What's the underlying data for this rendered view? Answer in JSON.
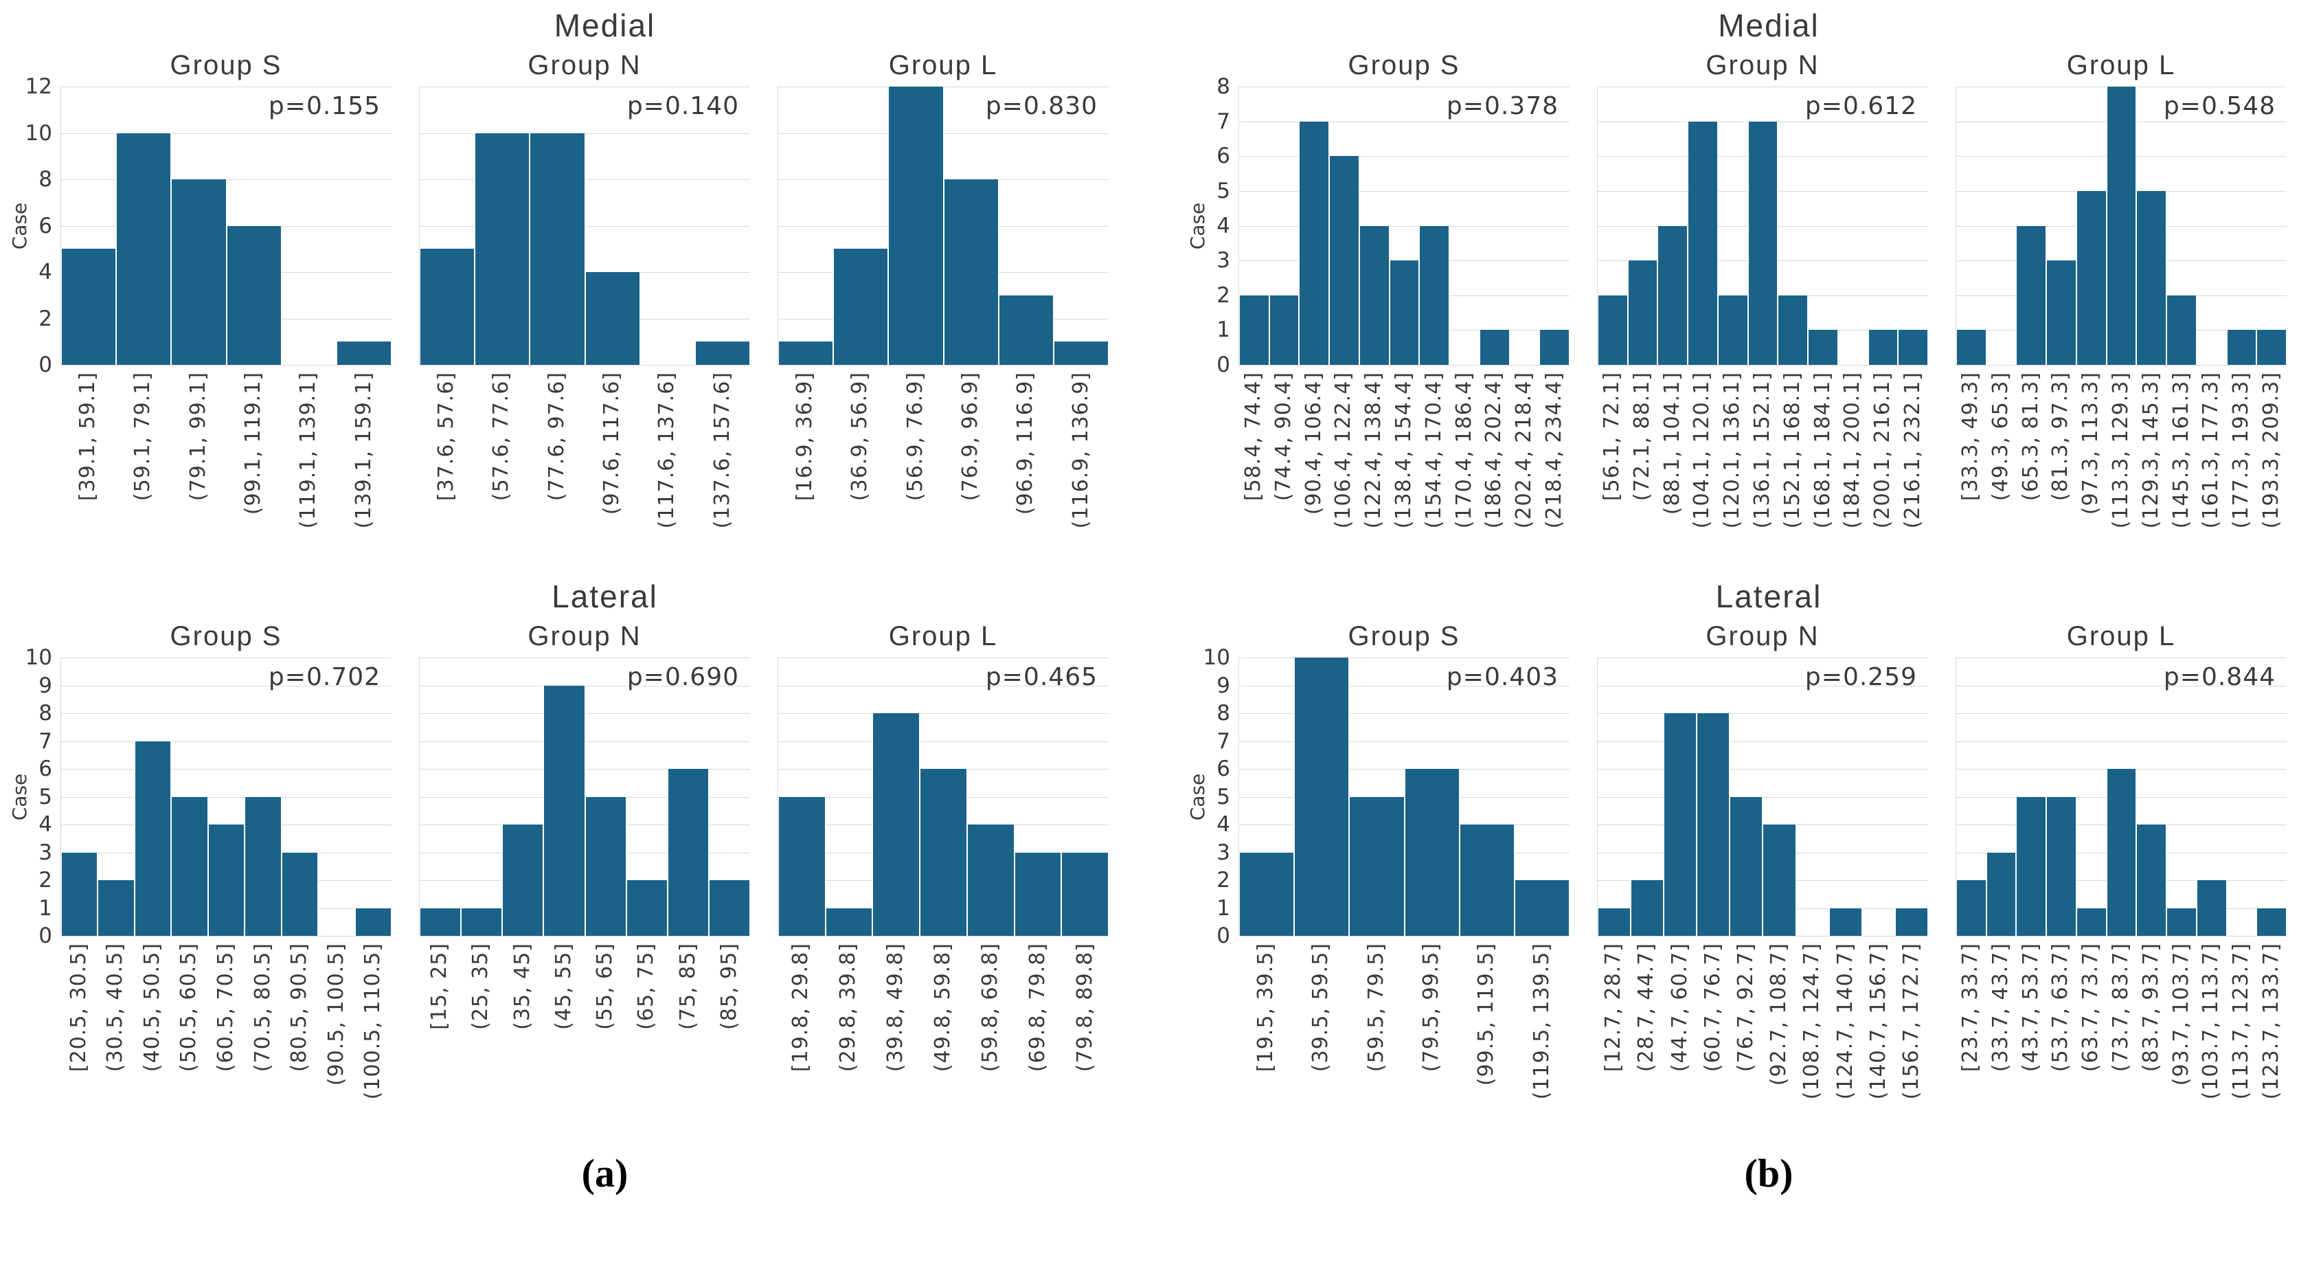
{
  "style": {
    "bar_color": "#1b6289",
    "bar_edge_color": "#ffffff",
    "grid_color": "#d8d8d8",
    "text_color": "#3a3a3a",
    "background": "#ffffff",
    "panel_label_color": "#000000"
  },
  "chart_layout": {
    "panels": [
      {
        "label": "(a)",
        "sections": [
          {
            "title": "Medial",
            "ylabel": "Case",
            "ymax": 12,
            "ystep": 2,
            "charts": [
              0,
              1,
              2
            ]
          },
          {
            "title": "Lateral",
            "ylabel": "Case",
            "ymax": 10,
            "ystep": 1,
            "charts": [
              3,
              4,
              5
            ]
          }
        ]
      },
      {
        "label": "(b)",
        "sections": [
          {
            "title": "Medial",
            "ylabel": "Case",
            "ymax": 8,
            "ystep": 1,
            "charts": [
              6,
              7,
              8
            ]
          },
          {
            "title": "Lateral",
            "ylabel": "Case",
            "ymax": 10,
            "ystep": 1,
            "charts": [
              9,
              10,
              11
            ]
          }
        ]
      }
    ]
  },
  "chart_data": [
    {
      "type": "bar",
      "panel": "a",
      "section": "Medial",
      "title": "Group S",
      "annotation": "p=0.155",
      "ylabel": "Case",
      "ylim": [
        0,
        12
      ],
      "ytick_step": 2,
      "grid": true,
      "categories": [
        "[39.1, 59.1]",
        "(59.1, 79.1]",
        "(79.1, 99.1]",
        "(99.1, 119.1]",
        "(119.1, 139.1]",
        "(139.1, 159.1]"
      ],
      "values": [
        5,
        10,
        8,
        6,
        0,
        1
      ]
    },
    {
      "type": "bar",
      "panel": "a",
      "section": "Medial",
      "title": "Group N",
      "annotation": "p=0.140",
      "ylabel": "Case",
      "ylim": [
        0,
        12
      ],
      "ytick_step": 2,
      "grid": true,
      "categories": [
        "[37.6, 57.6]",
        "(57.6, 77.6]",
        "(77.6, 97.6]",
        "(97.6, 117.6]",
        "(117.6, 137.6]",
        "(137.6, 157.6]"
      ],
      "values": [
        5,
        10,
        10,
        4,
        0,
        1
      ]
    },
    {
      "type": "bar",
      "panel": "a",
      "section": "Medial",
      "title": "Group L",
      "annotation": "p=0.830",
      "ylabel": "Case",
      "ylim": [
        0,
        12
      ],
      "ytick_step": 2,
      "grid": true,
      "categories": [
        "[16.9, 36.9]",
        "(36.9, 56.9]",
        "(56.9, 76.9]",
        "(76.9, 96.9]",
        "(96.9, 116.9]",
        "(116.9, 136.9]"
      ],
      "values": [
        1,
        5,
        12,
        8,
        3,
        1
      ]
    },
    {
      "type": "bar",
      "panel": "a",
      "section": "Lateral",
      "title": "Group S",
      "annotation": "p=0.702",
      "ylabel": "Case",
      "ylim": [
        0,
        10
      ],
      "ytick_step": 1,
      "grid": true,
      "categories": [
        "[20.5, 30.5]",
        "(30.5, 40.5]",
        "(40.5, 50.5]",
        "(50.5, 60.5]",
        "(60.5, 70.5]",
        "(70.5, 80.5]",
        "(80.5, 90.5]",
        "(90.5, 100.5]",
        "(100.5, 110.5]"
      ],
      "values": [
        3,
        2,
        7,
        5,
        4,
        5,
        3,
        0,
        1
      ]
    },
    {
      "type": "bar",
      "panel": "a",
      "section": "Lateral",
      "title": "Group N",
      "annotation": "p=0.690",
      "ylabel": "Case",
      "ylim": [
        0,
        10
      ],
      "ytick_step": 1,
      "grid": true,
      "categories": [
        "[15, 25]",
        "(25, 35]",
        "(35, 45]",
        "(45, 55]",
        "(55, 65]",
        "(65, 75]",
        "(75, 85]",
        "(85, 95]"
      ],
      "values": [
        1,
        1,
        4,
        9,
        5,
        2,
        6,
        2
      ]
    },
    {
      "type": "bar",
      "panel": "a",
      "section": "Lateral",
      "title": "Group L",
      "annotation": "p=0.465",
      "ylabel": "Case",
      "ylim": [
        0,
        10
      ],
      "ytick_step": 1,
      "grid": true,
      "categories": [
        "[19.8, 29.8]",
        "(29.8, 39.8]",
        "(39.8, 49.8]",
        "(49.8, 59.8]",
        "(59.8, 69.8]",
        "(69.8, 79.8]",
        "(79.8, 89.8]"
      ],
      "values": [
        5,
        1,
        8,
        6,
        4,
        3,
        3
      ]
    },
    {
      "type": "bar",
      "panel": "b",
      "section": "Medial",
      "title": "Group S",
      "annotation": "p=0.378",
      "ylabel": "Case",
      "ylim": [
        0,
        8
      ],
      "ytick_step": 1,
      "grid": true,
      "categories": [
        "[58.4, 74.4]",
        "(74.4, 90.4]",
        "(90.4, 106.4]",
        "(106.4, 122.4]",
        "(122.4, 138.4]",
        "(138.4, 154.4]",
        "(154.4, 170.4]",
        "(170.4, 186.4]",
        "(186.4, 202.4]",
        "(202.4, 218.4]",
        "(218.4, 234.4]"
      ],
      "values": [
        2,
        2,
        7,
        6,
        4,
        3,
        4,
        0,
        1,
        0,
        1
      ]
    },
    {
      "type": "bar",
      "panel": "b",
      "section": "Medial",
      "title": "Group N",
      "annotation": "p=0.612",
      "ylabel": "Case",
      "ylim": [
        0,
        8
      ],
      "ytick_step": 1,
      "grid": true,
      "categories": [
        "[56.1, 72.1]",
        "(72.1, 88.1]",
        "(88.1, 104.1]",
        "(104.1, 120.1]",
        "(120.1, 136.1]",
        "(136.1, 152.1]",
        "(152.1, 168.1]",
        "(168.1, 184.1]",
        "(184.1, 200.1]",
        "(200.1, 216.1]",
        "(216.1, 232.1]"
      ],
      "values": [
        2,
        3,
        4,
        7,
        2,
        7,
        2,
        1,
        0,
        1,
        1
      ]
    },
    {
      "type": "bar",
      "panel": "b",
      "section": "Medial",
      "title": "Group L",
      "annotation": "p=0.548",
      "ylabel": "Case",
      "ylim": [
        0,
        8
      ],
      "ytick_step": 1,
      "grid": true,
      "categories": [
        "[33.3, 49.3]",
        "(49.3, 65.3]",
        "(65.3, 81.3]",
        "(81.3, 97.3]",
        "(97.3, 113.3]",
        "(113.3, 129.3]",
        "(129.3, 145.3]",
        "(145.3, 161.3]",
        "(161.3, 177.3]",
        "(177.3, 193.3]",
        "(193.3, 209.3]"
      ],
      "values": [
        1,
        0,
        4,
        3,
        5,
        8,
        5,
        2,
        0,
        1,
        1
      ]
    },
    {
      "type": "bar",
      "panel": "b",
      "section": "Lateral",
      "title": "Group S",
      "annotation": "p=0.403",
      "ylabel": "Case",
      "ylim": [
        0,
        10
      ],
      "ytick_step": 1,
      "grid": true,
      "categories": [
        "[19.5, 39.5]",
        "(39.5, 59.5]",
        "(59.5, 79.5]",
        "(79.5, 99.5]",
        "(99.5, 119.5]",
        "(119.5, 139.5]"
      ],
      "values": [
        3,
        10,
        5,
        6,
        4,
        2
      ]
    },
    {
      "type": "bar",
      "panel": "b",
      "section": "Lateral",
      "title": "Group N",
      "annotation": "p=0.259",
      "ylabel": "Case",
      "ylim": [
        0,
        10
      ],
      "ytick_step": 1,
      "grid": true,
      "categories": [
        "[12.7, 28.7]",
        "(28.7, 44.7]",
        "(44.7, 60.7]",
        "(60.7, 76.7]",
        "(76.7, 92.7]",
        "(92.7, 108.7]",
        "(108.7, 124.7]",
        "(124.7, 140.7]",
        "(140.7, 156.7]",
        "(156.7, 172.7]"
      ],
      "values": [
        1,
        2,
        8,
        8,
        5,
        4,
        0,
        1,
        0,
        1
      ]
    },
    {
      "type": "bar",
      "panel": "b",
      "section": "Lateral",
      "title": "Group L",
      "annotation": "p=0.844",
      "ylabel": "Case",
      "ylim": [
        0,
        10
      ],
      "ytick_step": 1,
      "grid": true,
      "categories": [
        "[23.7, 33.7]",
        "(33.7, 43.7]",
        "(43.7, 53.7]",
        "(53.7, 63.7]",
        "(63.7, 73.7]",
        "(73.7, 83.7]",
        "(83.7, 93.7]",
        "(93.7, 103.7]",
        "(103.7, 113.7]",
        "(113.7, 123.7]",
        "(123.7, 133.7]"
      ],
      "values": [
        2,
        3,
        5,
        5,
        1,
        6,
        4,
        1,
        2,
        0,
        1
      ]
    }
  ]
}
